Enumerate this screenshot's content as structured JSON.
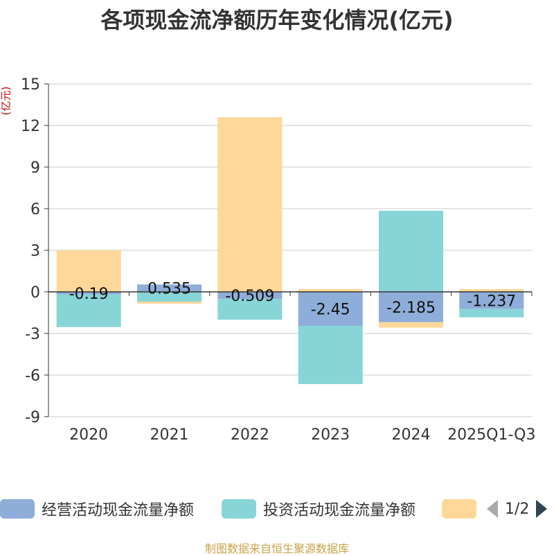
{
  "chart_data": {
    "type": "bar",
    "stacked": true,
    "title": "各项现金流净额历年变化情况(亿元)",
    "ylabel": "(亿元)",
    "xlabel": "",
    "ylim": [
      -9,
      15
    ],
    "yticks": [
      15,
      12,
      9,
      6,
      3,
      0,
      -3,
      -6,
      -9
    ],
    "categories": [
      "2020",
      "2021",
      "2022",
      "2023",
      "2024",
      "2025Q1-Q3"
    ],
    "series": [
      {
        "name": "经营活动现金流量净额",
        "color": "#8eaed9",
        "values": [
          -0.19,
          0.535,
          -0.509,
          -2.45,
          -2.185,
          -1.237
        ]
      },
      {
        "name": "投资活动现金流量净额",
        "color": "#88d5d7",
        "values": [
          -2.35,
          -0.7,
          -1.5,
          -4.2,
          5.85,
          -0.6
        ]
      },
      {
        "name": "",
        "color": "#ffd899",
        "values": [
          3.0,
          -0.15,
          12.6,
          0.2,
          -0.4,
          0.2
        ]
      }
    ],
    "data_labels": [
      "-0.19",
      "0.535",
      "-0.509",
      "-2.45",
      "-2.185",
      "-1.237"
    ],
    "legend_position": "bottom"
  },
  "legend": {
    "page": "1/2"
  },
  "footer": {
    "source": "制图数据来自恒生聚源数据库"
  }
}
